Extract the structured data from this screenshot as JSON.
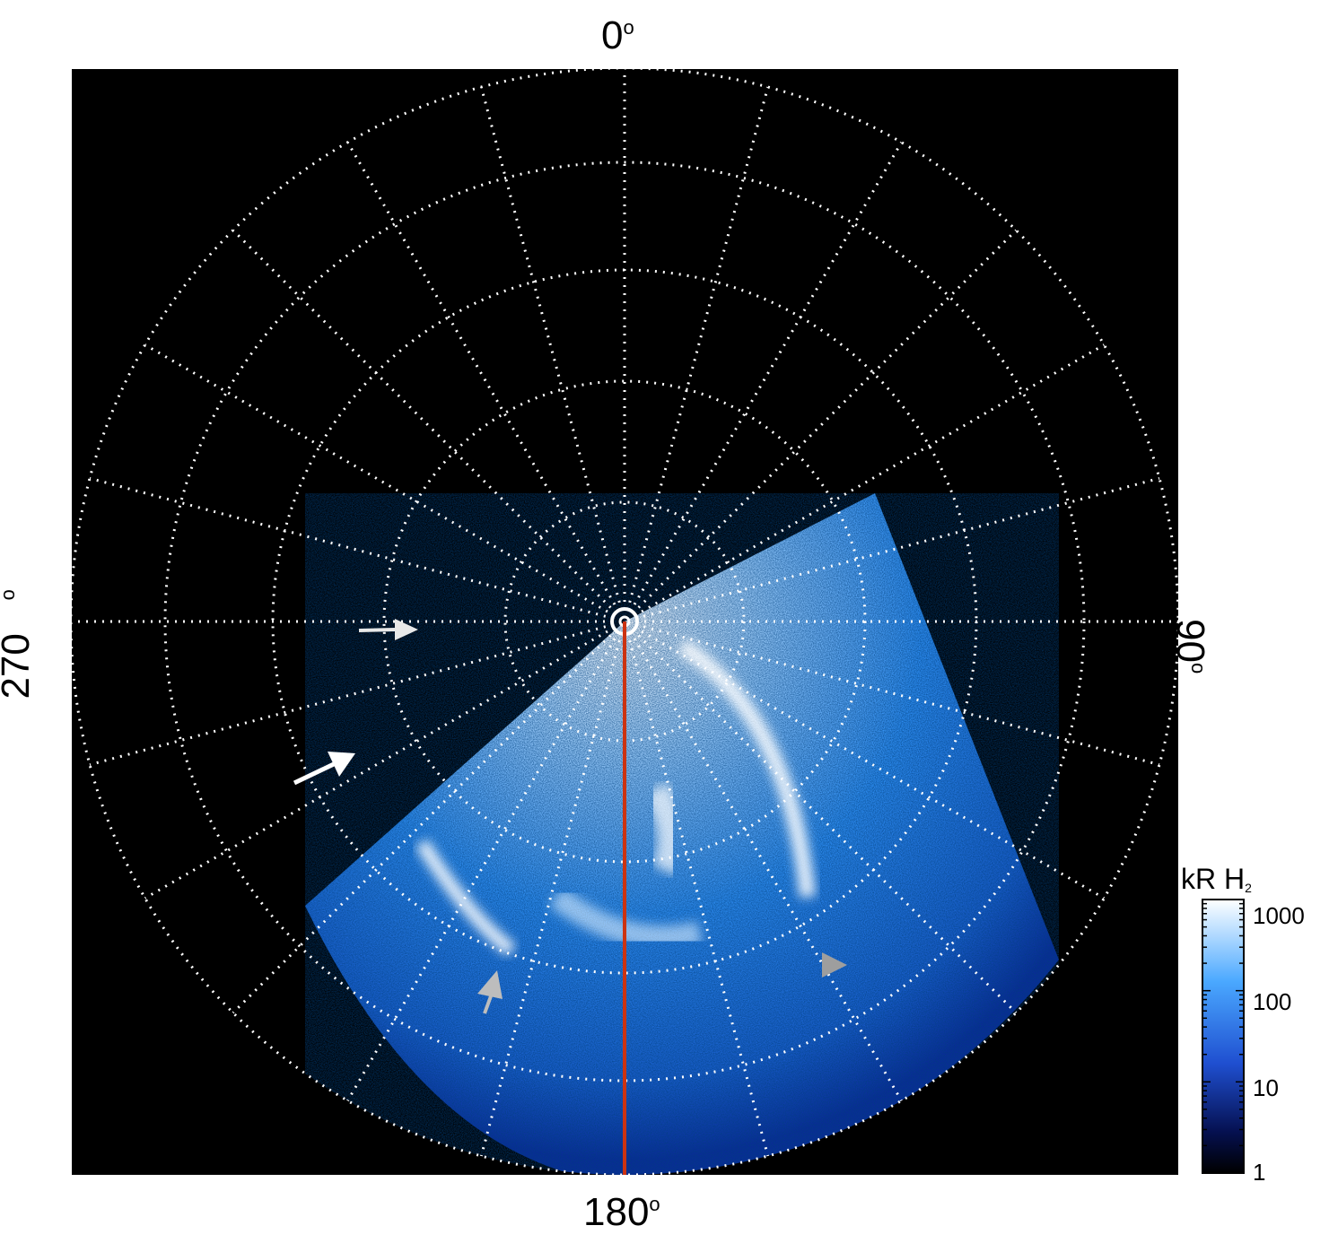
{
  "axis_labels": {
    "top": "0",
    "right": "90",
    "bottom": "180",
    "left": "270",
    "degree_symbol": "o"
  },
  "colorbar": {
    "title": "kR H",
    "title_subscript": "2",
    "scale": "log",
    "ticks": [
      "1000",
      "100",
      "10",
      "1"
    ],
    "colors": [
      "#ffffff",
      "#2f8ff5",
      "#0a2a9a",
      "#000000"
    ]
  },
  "colors": {
    "plot_background": "#000000",
    "grid": "#ffffff",
    "meridian_line": "#cc3311",
    "arrow_white": "#ffffff",
    "arrow_gray": "#bdbdbd"
  },
  "annotations": {
    "arrows": [
      {
        "name": "white-arrow-upper",
        "color": "white"
      },
      {
        "name": "white-arrow-lower",
        "color": "white"
      },
      {
        "name": "gray-arrow-left",
        "color": "gray"
      },
      {
        "name": "gray-arrow-right",
        "color": "gray"
      }
    ]
  }
}
